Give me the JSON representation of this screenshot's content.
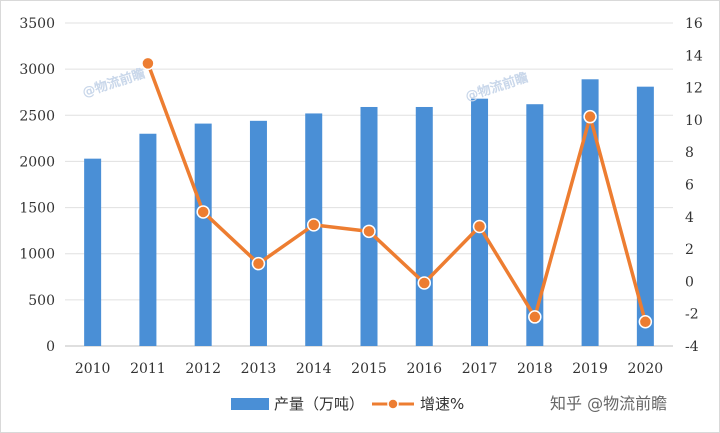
{
  "chart_data": {
    "type": "bar+line",
    "categories": [
      "2010",
      "2011",
      "2012",
      "2013",
      "2014",
      "2015",
      "2016",
      "2017",
      "2018",
      "2019",
      "2020"
    ],
    "series": [
      {
        "name": "产量（万吨）",
        "type": "bar",
        "axis": "left",
        "color": "#4a8fd6",
        "values": [
          2030,
          2300,
          2410,
          2440,
          2520,
          2590,
          2590,
          2680,
          2620,
          2890,
          2810
        ]
      },
      {
        "name": "增速%",
        "type": "line",
        "axis": "right",
        "color": "#ed7d31",
        "values": [
          null,
          13.5,
          4.3,
          1.1,
          3.5,
          3.1,
          -0.1,
          3.4,
          -2.2,
          10.2,
          -2.5
        ]
      }
    ],
    "left_axis": {
      "min": 0,
      "max": 3500,
      "ticks": [
        "0",
        "500",
        "1000",
        "1500",
        "2000",
        "2500",
        "3000",
        "3500"
      ]
    },
    "right_axis": {
      "min": -4,
      "max": 16,
      "ticks": [
        "-4",
        "-2",
        "0",
        "2",
        "4",
        "6",
        "8",
        "10",
        "12",
        "14",
        "16"
      ]
    },
    "grid": true,
    "legend_position": "bottom"
  },
  "watermarks": {
    "left": "@物流前瞻",
    "right": "@物流前瞻",
    "corner": "知乎 @物流前瞻"
  }
}
